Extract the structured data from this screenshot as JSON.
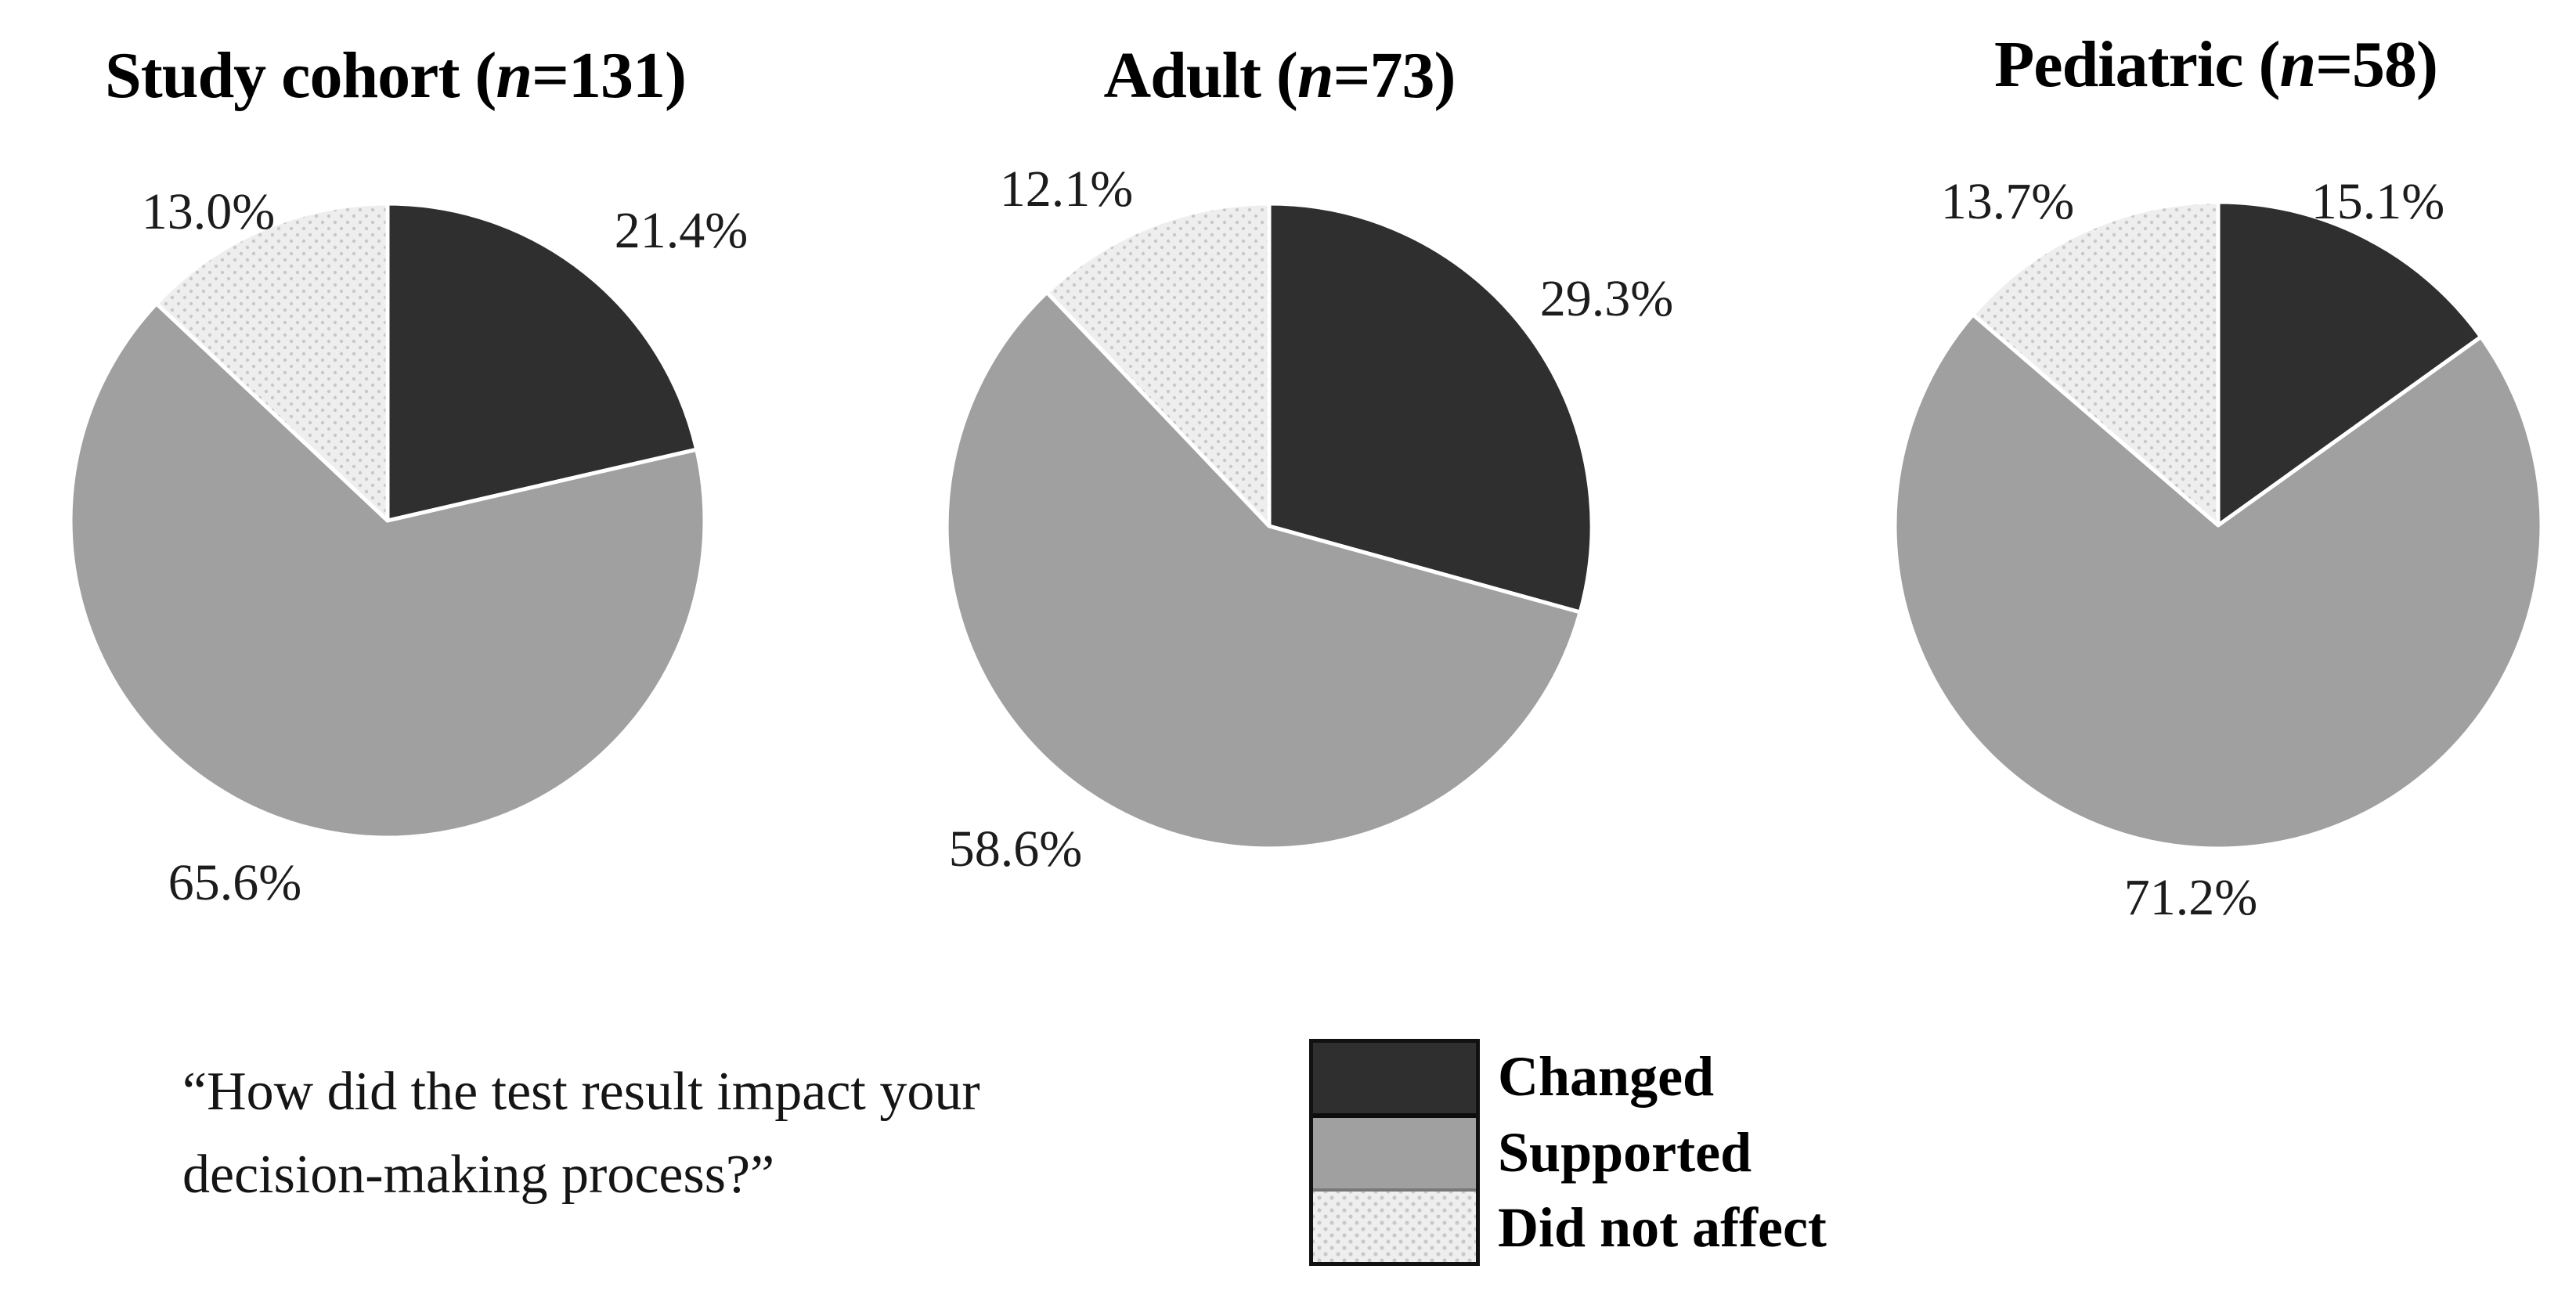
{
  "question": {
    "line1": "“How did the test result impact your",
    "line2": "decision-making process?”",
    "full": "“How did the test result impact your decision-making process?”"
  },
  "legend": {
    "items": [
      {
        "label": "Changed",
        "color": "#2f2f2f",
        "texture": "solid"
      },
      {
        "label": "Supported",
        "color": "#a0a0a0",
        "texture": "solid"
      },
      {
        "label": "Did not affect",
        "color": "#eeeeee",
        "texture": "dots"
      }
    ]
  },
  "chart_data": [
    {
      "type": "pie",
      "title": "Study cohort (n=131)",
      "title_pre": "Study cohort (",
      "title_n": "n",
      "title_post": "=131)",
      "sample_size": 131,
      "start_angle_deg": 0,
      "direction": "clockwise",
      "slices": [
        {
          "label": "Changed",
          "value_pct": 21.4,
          "display": "21.4%",
          "color": "#2f2f2f",
          "texture": "solid"
        },
        {
          "label": "Supported",
          "value_pct": 65.6,
          "display": "65.6%",
          "color": "#a0a0a0",
          "texture": "solid"
        },
        {
          "label": "Did not affect",
          "value_pct": 13.0,
          "display": "13.0%",
          "color": "#eeeeee",
          "texture": "dots"
        }
      ]
    },
    {
      "type": "pie",
      "title": "Adult (n=73)",
      "title_pre": "Adult (",
      "title_n": "n",
      "title_post": "=73)",
      "sample_size": 73,
      "start_angle_deg": 0,
      "direction": "clockwise",
      "slices": [
        {
          "label": "Changed",
          "value_pct": 29.3,
          "display": "29.3%",
          "color": "#2f2f2f",
          "texture": "solid"
        },
        {
          "label": "Supported",
          "value_pct": 58.6,
          "display": "58.6%",
          "color": "#a0a0a0",
          "texture": "solid"
        },
        {
          "label": "Did not affect",
          "value_pct": 12.1,
          "display": "12.1%",
          "color": "#eeeeee",
          "texture": "dots"
        }
      ]
    },
    {
      "type": "pie",
      "title": "Pediatric (n=58)",
      "title_pre": "Pediatric (",
      "title_n": "n",
      "title_post": "=58)",
      "sample_size": 58,
      "start_angle_deg": 0,
      "direction": "clockwise",
      "slices": [
        {
          "label": "Changed",
          "value_pct": 15.1,
          "display": "15.1%",
          "color": "#2f2f2f",
          "texture": "solid"
        },
        {
          "label": "Supported",
          "value_pct": 71.2,
          "display": "71.2%",
          "color": "#a0a0a0",
          "texture": "solid"
        },
        {
          "label": "Did not affect",
          "value_pct": 13.7,
          "display": "13.7%",
          "color": "#eeeeee",
          "texture": "dots"
        }
      ]
    }
  ]
}
